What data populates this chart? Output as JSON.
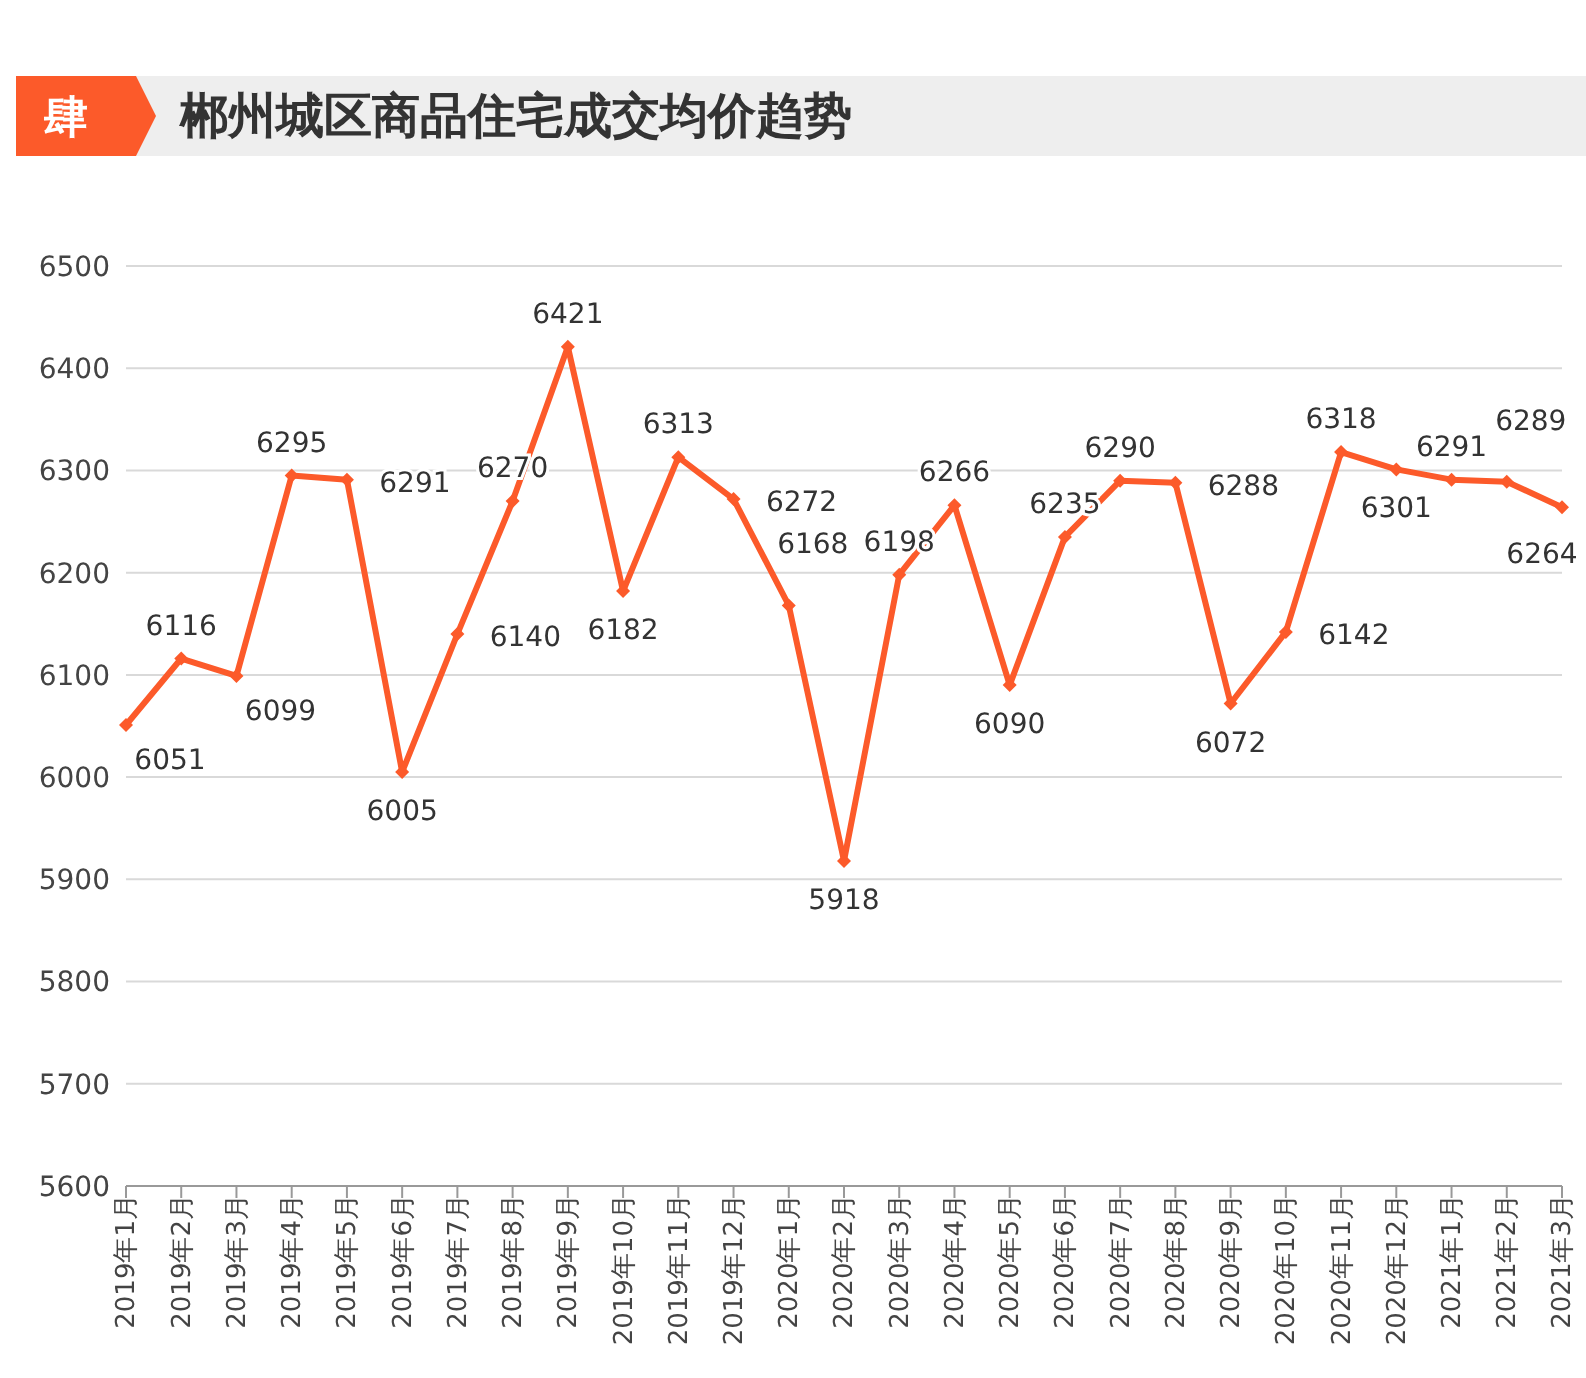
{
  "chart_data": {
    "type": "line",
    "title": "郴州城区商品住宅成交均价趋势",
    "annotations": [
      "肆"
    ],
    "categories": [
      "2019年1月",
      "2019年2月",
      "2019年3月",
      "2019年4月",
      "2019年5月",
      "2019年6月",
      "2019年7月",
      "2019年8月",
      "2019年9月",
      "2019年10月",
      "2019年11月",
      "2019年12月",
      "2020年1月",
      "2020年2月",
      "2020年3月",
      "2020年4月",
      "2020年5月",
      "2020年6月",
      "2020年7月",
      "2020年8月",
      "2020年9月",
      "2020年10月",
      "2020年11月",
      "2020年12月",
      "2021年1月",
      "2021年2月",
      "2021年3月"
    ],
    "series": [
      {
        "color": "#fc5a2a",
        "values": [
          6051,
          6116,
          6099,
          6295,
          6291,
          6005,
          6140,
          6270,
          6421,
          6182,
          6313,
          6272,
          6168,
          5918,
          6198,
          6266,
          6090,
          6235,
          6290,
          6288,
          6072,
          6142,
          6318,
          6301,
          6291,
          6289,
          6264
        ]
      }
    ],
    "ylim": [
      5600,
      6500
    ],
    "yticks": [
      5600,
      5700,
      5800,
      5900,
      6000,
      6100,
      6200,
      6300,
      6400,
      6500
    ],
    "grid": "y",
    "marker": "diamond",
    "line_style": "solid",
    "data_labels": true
  }
}
